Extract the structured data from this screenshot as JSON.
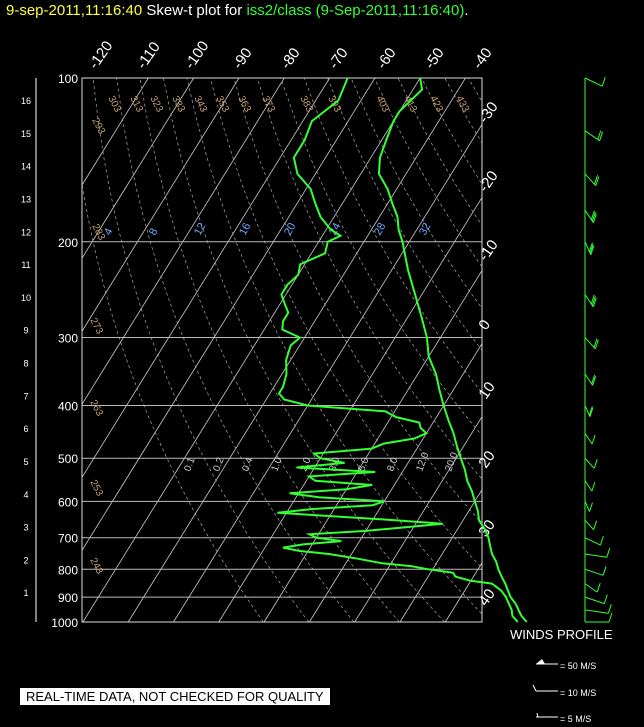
{
  "title": {
    "time_stamp": "9-sep-2011,11:16:40",
    "plot_word": "Skew-t plot for",
    "source": "iss2/class (9-Sep-2011,11:16:40)",
    "period": "."
  },
  "quality_note": "REAL-TIME DATA, NOT CHECKED FOR QUALITY",
  "winds": {
    "title": "WINDS PROFILE",
    "legend": [
      "= 50 M/S",
      "= 10 M/S",
      "= 5 M/S"
    ]
  },
  "colors": {
    "sounding": "#33ff33",
    "title_time": "#ffff3c",
    "grid": "#cccccc",
    "dry_adiabat_labels": "#c8a070",
    "mixing_ratio_labels": "#6fa8ff"
  },
  "chart_data": {
    "type": "line",
    "chart_kind": "skew-t log-p diagram",
    "y_axis": {
      "scale": "log",
      "units": "hPa",
      "range": [
        1000,
        100
      ],
      "ticks": [
        100,
        200,
        300,
        400,
        500,
        600,
        700,
        800,
        900,
        1000
      ]
    },
    "height_ticks_km": [
      1,
      2,
      3,
      4,
      5,
      6,
      7,
      8,
      9,
      10,
      11,
      12,
      13,
      14,
      15,
      16
    ],
    "isotherm_labels_top": [
      "-120",
      "-110",
      "-100",
      "-90",
      "-80",
      "-70",
      "-60",
      "-50",
      "-40"
    ],
    "isotherm_labels_right": [
      "-30",
      "-20",
      "-10",
      "0",
      "10",
      "20",
      "30",
      "40"
    ],
    "dry_adiabat_labels": [
      "243",
      "253",
      "263",
      "273",
      "283",
      "293",
      "303",
      "313",
      "323",
      "333",
      "343",
      "353",
      "363",
      "373",
      "383",
      "393",
      "403",
      "413",
      "423",
      "433"
    ],
    "mixing_ratio_labels_upper": [
      "4",
      "8",
      "12",
      "16",
      "20",
      "24",
      "28",
      "32"
    ],
    "mixing_ratio_labels_lower": [
      "0.1",
      "0.2",
      "0.4",
      "1.0",
      "2.0",
      "3.0",
      "5.0",
      "8.0",
      "12.0",
      "20.0"
    ],
    "series": [
      {
        "name": "temperature",
        "points": [
          [
            1000,
            28
          ],
          [
            975,
            26
          ],
          [
            950,
            24.5
          ],
          [
            925,
            23
          ],
          [
            900,
            21
          ],
          [
            875,
            19.5
          ],
          [
            850,
            18
          ],
          [
            825,
            16.2
          ],
          [
            800,
            14.5
          ],
          [
            775,
            13
          ],
          [
            750,
            11
          ],
          [
            725,
            9.5
          ],
          [
            700,
            8
          ],
          [
            675,
            6
          ],
          [
            650,
            3.5
          ],
          [
            625,
            2
          ],
          [
            600,
            0
          ],
          [
            575,
            -2
          ],
          [
            550,
            -4.5
          ],
          [
            525,
            -6.5
          ],
          [
            500,
            -9
          ],
          [
            475,
            -11.5
          ],
          [
            450,
            -14
          ],
          [
            425,
            -17
          ],
          [
            400,
            -20
          ],
          [
            375,
            -23
          ],
          [
            350,
            -26
          ],
          [
            325,
            -30
          ],
          [
            300,
            -33
          ],
          [
            275,
            -37
          ],
          [
            250,
            -41.5
          ],
          [
            225,
            -46.5
          ],
          [
            200,
            -51.5
          ],
          [
            190,
            -54
          ],
          [
            180,
            -56
          ],
          [
            170,
            -59
          ],
          [
            160,
            -62
          ],
          [
            150,
            -66
          ],
          [
            140,
            -68
          ],
          [
            130,
            -69
          ],
          [
            120,
            -70
          ],
          [
            115,
            -70
          ],
          [
            110,
            -69
          ],
          [
            105,
            -68
          ],
          [
            100,
            -70
          ]
        ]
      },
      {
        "name": "dewpoint",
        "points": [
          [
            1000,
            26
          ],
          [
            975,
            24
          ],
          [
            950,
            23
          ],
          [
            925,
            21.5
          ],
          [
            900,
            20
          ],
          [
            875,
            18
          ],
          [
            850,
            15
          ],
          [
            840,
            10
          ],
          [
            825,
            6
          ],
          [
            812,
            5
          ],
          [
            800,
            -1
          ],
          [
            790,
            -5
          ],
          [
            780,
            -12
          ],
          [
            765,
            -18
          ],
          [
            750,
            -25
          ],
          [
            740,
            -32
          ],
          [
            730,
            -36
          ],
          [
            720,
            -32
          ],
          [
            710,
            -24
          ],
          [
            700,
            -30
          ],
          [
            690,
            -32
          ],
          [
            680,
            -20
          ],
          [
            670,
            -12
          ],
          [
            660,
            -4
          ],
          [
            650,
            -15
          ],
          [
            640,
            -28
          ],
          [
            630,
            -42
          ],
          [
            620,
            -35
          ],
          [
            610,
            -22
          ],
          [
            600,
            -20
          ],
          [
            590,
            -35
          ],
          [
            580,
            -42
          ],
          [
            570,
            -30
          ],
          [
            560,
            -25
          ],
          [
            550,
            -38
          ],
          [
            540,
            -40
          ],
          [
            530,
            -26
          ],
          [
            520,
            -44
          ],
          [
            510,
            -34
          ],
          [
            500,
            -40
          ],
          [
            490,
            -42
          ],
          [
            480,
            -30
          ],
          [
            470,
            -28
          ],
          [
            460,
            -22
          ],
          [
            450,
            -20
          ],
          [
            440,
            -22
          ],
          [
            430,
            -23
          ],
          [
            420,
            -29
          ],
          [
            410,
            -32
          ],
          [
            400,
            -50
          ],
          [
            390,
            -56
          ],
          [
            380,
            -58
          ],
          [
            370,
            -58
          ],
          [
            350,
            -59
          ],
          [
            330,
            -61
          ],
          [
            310,
            -62
          ],
          [
            300,
            -61
          ],
          [
            290,
            -66
          ],
          [
            280,
            -67
          ],
          [
            270,
            -67
          ],
          [
            260,
            -69
          ],
          [
            250,
            -71
          ],
          [
            240,
            -71
          ],
          [
            230,
            -70
          ],
          [
            220,
            -71
          ],
          [
            210,
            -67
          ],
          [
            200,
            -68
          ],
          [
            195,
            -66
          ],
          [
            190,
            -69
          ],
          [
            180,
            -73
          ],
          [
            170,
            -76
          ],
          [
            160,
            -79
          ],
          [
            150,
            -84
          ],
          [
            140,
            -87
          ],
          [
            130,
            -87
          ],
          [
            120,
            -88
          ],
          [
            110,
            -85
          ],
          [
            100,
            -86
          ]
        ]
      }
    ],
    "wind_profile": {
      "units": "M/S",
      "barbs": [
        [
          1000,
          5,
          180
        ],
        [
          950,
          7,
          200
        ],
        [
          900,
          8,
          220
        ],
        [
          850,
          6,
          240
        ],
        [
          800,
          4,
          220
        ],
        [
          750,
          3,
          200
        ],
        [
          700,
          5,
          230
        ],
        [
          650,
          8,
          250
        ],
        [
          600,
          10,
          260
        ],
        [
          550,
          12,
          255
        ],
        [
          500,
          12,
          250
        ],
        [
          450,
          14,
          255
        ],
        [
          400,
          16,
          260
        ],
        [
          350,
          18,
          255
        ],
        [
          300,
          20,
          250
        ],
        [
          250,
          25,
          255
        ],
        [
          200,
          28,
          260
        ],
        [
          175,
          26,
          255
        ],
        [
          150,
          24,
          250
        ],
        [
          125,
          18,
          240
        ],
        [
          100,
          12,
          230
        ]
      ]
    }
  }
}
